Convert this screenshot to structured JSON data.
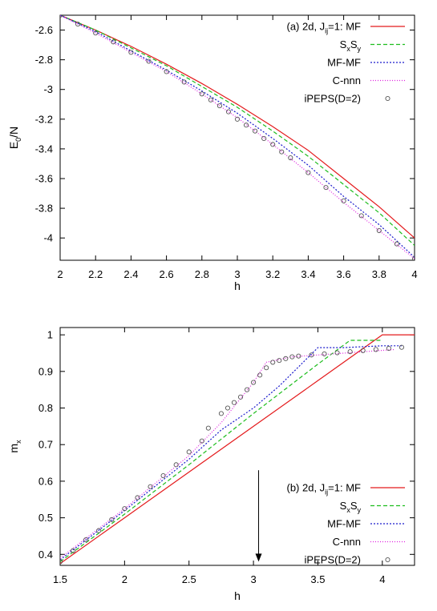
{
  "chart_data": [
    {
      "type": "line",
      "panel": "a",
      "xlabel": "h",
      "ylabel_main": "E",
      "ylabel_sub": "0",
      "ylabel_tail": "/N",
      "xlim": [
        2,
        4
      ],
      "ylim": [
        -4.15,
        -2.5
      ],
      "xticks": [
        "2",
        "2.2",
        "2.4",
        "2.6",
        "2.8",
        "3",
        "3.2",
        "3.4",
        "3.6",
        "3.8",
        "4"
      ],
      "xtick_values": [
        2,
        2.2,
        2.4,
        2.6,
        2.8,
        3,
        3.2,
        3.4,
        3.6,
        3.8,
        4
      ],
      "yticks": [
        "-2.6",
        "-2.8",
        "-3",
        "-3.2",
        "-3.4",
        "-3.6",
        "-3.8",
        "-4"
      ],
      "ytick_values": [
        -2.6,
        -2.8,
        -3,
        -3.2,
        -3.4,
        -3.6,
        -3.8,
        -4
      ],
      "legend_position": "top-right",
      "series": [
        {
          "name": "(a) 2d, Jij=1: MF",
          "label_parts": [
            [
              "(a) 2d, J",
              ""
            ],
            [
              "ij",
              "sub"
            ],
            [
              "=1: MF",
              ""
            ]
          ],
          "color": "#e41a1c",
          "dash": "",
          "marker": "line",
          "x": [
            2,
            2.2,
            2.4,
            2.6,
            2.8,
            3,
            3.2,
            3.4,
            3.6,
            3.8,
            4
          ],
          "y": [
            -2.5,
            -2.6,
            -2.71,
            -2.83,
            -2.96,
            -3.1,
            -3.25,
            -3.41,
            -3.6,
            -3.79,
            -4.0
          ]
        },
        {
          "name": "SxSy",
          "label_parts": [
            [
              "S",
              ""
            ],
            [
              "x",
              "sub"
            ],
            [
              "S",
              ""
            ],
            [
              "y",
              "sub"
            ]
          ],
          "color": "#1dbd1d",
          "dash": "5,3",
          "marker": "line",
          "x": [
            2,
            2.2,
            2.4,
            2.6,
            2.8,
            3,
            3.2,
            3.4,
            3.6,
            3.8,
            4
          ],
          "y": [
            -2.5,
            -2.6,
            -2.72,
            -2.84,
            -2.98,
            -3.12,
            -3.28,
            -3.45,
            -3.64,
            -3.83,
            -4.05
          ]
        },
        {
          "name": "MF-MF",
          "label_parts": [
            [
              "MF-MF",
              ""
            ]
          ],
          "color": "#1a1acc",
          "dash": "2,2",
          "marker": "line",
          "x": [
            2,
            2.2,
            2.4,
            2.6,
            2.8,
            3,
            3.2,
            3.4,
            3.6,
            3.8,
            4
          ],
          "y": [
            -2.5,
            -2.61,
            -2.74,
            -2.87,
            -3.01,
            -3.16,
            -3.33,
            -3.51,
            -3.72,
            -3.91,
            -4.13
          ]
        },
        {
          "name": "C-nnn",
          "label_parts": [
            [
              "C-nnn",
              ""
            ]
          ],
          "color": "#e020e0",
          "dash": "1,2",
          "marker": "line",
          "x": [
            2,
            2.2,
            2.4,
            2.6,
            2.8,
            3,
            3.2,
            3.4,
            3.6,
            3.8,
            4
          ],
          "y": [
            -2.5,
            -2.62,
            -2.75,
            -2.88,
            -3.03,
            -3.19,
            -3.37,
            -3.56,
            -3.76,
            -3.95,
            -4.14
          ]
        },
        {
          "name": "iPEPS(D=2)",
          "label_parts": [
            [
              "iPEPS(D=2)",
              ""
            ]
          ],
          "color": "#555555",
          "dash": "",
          "marker": "circle",
          "x": [
            2,
            2.1,
            2.2,
            2.3,
            2.4,
            2.5,
            2.6,
            2.7,
            2.8,
            2.85,
            2.9,
            2.95,
            3,
            3.05,
            3.1,
            3.15,
            3.2,
            3.25,
            3.3,
            3.4,
            3.5,
            3.6,
            3.7,
            3.8,
            3.9,
            4
          ],
          "y": [
            -2.5,
            -2.56,
            -2.62,
            -2.68,
            -2.75,
            -2.81,
            -2.88,
            -2.95,
            -3.03,
            -3.07,
            -3.11,
            -3.15,
            -3.2,
            -3.24,
            -3.28,
            -3.33,
            -3.37,
            -3.42,
            -3.46,
            -3.56,
            -3.66,
            -3.75,
            -3.85,
            -3.95,
            -4.04,
            -4.14
          ]
        }
      ]
    },
    {
      "type": "line",
      "panel": "b",
      "xlabel": "h",
      "ylabel_main": "m",
      "ylabel_sub": "x",
      "ylabel_tail": "",
      "xlim": [
        1.5,
        4.25
      ],
      "ylim": [
        0.37,
        1.02
      ],
      "xticks": [
        "1.5",
        "2",
        "2.5",
        "3",
        "3.5",
        "4"
      ],
      "xtick_values": [
        1.5,
        2,
        2.5,
        3,
        3.5,
        4
      ],
      "yticks": [
        "0.4",
        "0.5",
        "0.6",
        "0.7",
        "0.8",
        "0.9",
        "1"
      ],
      "ytick_values": [
        0.4,
        0.5,
        0.6,
        0.7,
        0.8,
        0.9,
        1
      ],
      "legend_position": "bottom-right",
      "annotation": {
        "type": "arrow",
        "x": 3.04,
        "y_from": 0.63,
        "y_to": 0.38
      },
      "series": [
        {
          "name": "(b) 2d, Jij=1: MF",
          "label_parts": [
            [
              "(b) 2d, J",
              ""
            ],
            [
              "ij",
              "sub"
            ],
            [
              "=1: MF",
              ""
            ]
          ],
          "color": "#e41a1c",
          "dash": "",
          "marker": "line",
          "x": [
            1.5,
            2,
            2.5,
            3,
            3.5,
            4,
            4.25
          ],
          "y": [
            0.375,
            0.5,
            0.625,
            0.75,
            0.875,
            1.0,
            1.0
          ]
        },
        {
          "name": "SxSy",
          "label_parts": [
            [
              "S",
              ""
            ],
            [
              "x",
              "sub"
            ],
            [
              "S",
              ""
            ],
            [
              "y",
              "sub"
            ]
          ],
          "color": "#1dbd1d",
          "dash": "5,3",
          "marker": "line",
          "x": [
            1.5,
            2,
            2.5,
            3,
            3.5,
            3.75,
            4.0
          ],
          "y": [
            0.38,
            0.51,
            0.645,
            0.785,
            0.92,
            0.985,
            0.985
          ]
        },
        {
          "name": "MF-MF",
          "label_parts": [
            [
              "MF-MF",
              ""
            ]
          ],
          "color": "#1a1acc",
          "dash": "2,2",
          "marker": "line",
          "x": [
            1.5,
            2,
            2.5,
            2.75,
            3,
            3.2,
            3.4,
            3.5,
            3.6,
            3.7,
            4.0,
            4.15
          ],
          "y": [
            0.385,
            0.52,
            0.66,
            0.74,
            0.8,
            0.86,
            0.93,
            0.965,
            0.965,
            0.965,
            0.97,
            0.97
          ]
        },
        {
          "name": "C-nnn",
          "label_parts": [
            [
              "C-nnn",
              ""
            ]
          ],
          "color": "#e020e0",
          "dash": "1,2",
          "marker": "line",
          "x": [
            1.5,
            2,
            2.5,
            2.75,
            3,
            3.1,
            3.3,
            3.5,
            3.7,
            3.9,
            4.1
          ],
          "y": [
            0.39,
            0.525,
            0.67,
            0.76,
            0.87,
            0.925,
            0.94,
            0.945,
            0.95,
            0.955,
            0.96
          ]
        },
        {
          "name": "iPEPS(D=2)",
          "label_parts": [
            [
              "iPEPS(D=2)",
              ""
            ]
          ],
          "color": "#555555",
          "dash": "",
          "marker": "circle",
          "x": [
            1.5,
            1.6,
            1.7,
            1.8,
            1.9,
            2.0,
            2.1,
            2.2,
            2.3,
            2.4,
            2.5,
            2.6,
            2.65,
            2.75,
            2.8,
            2.85,
            2.9,
            2.95,
            3.0,
            3.05,
            3.1,
            3.15,
            3.2,
            3.25,
            3.3,
            3.35,
            3.45,
            3.55,
            3.65,
            3.75,
            3.85,
            3.95,
            4.05,
            4.15
          ],
          "y": [
            0.38,
            0.41,
            0.44,
            0.465,
            0.495,
            0.525,
            0.555,
            0.585,
            0.615,
            0.645,
            0.68,
            0.71,
            0.745,
            0.785,
            0.8,
            0.815,
            0.83,
            0.85,
            0.87,
            0.89,
            0.91,
            0.925,
            0.93,
            0.935,
            0.94,
            0.942,
            0.945,
            0.948,
            0.951,
            0.954,
            0.957,
            0.96,
            0.963,
            0.966
          ]
        }
      ]
    }
  ]
}
